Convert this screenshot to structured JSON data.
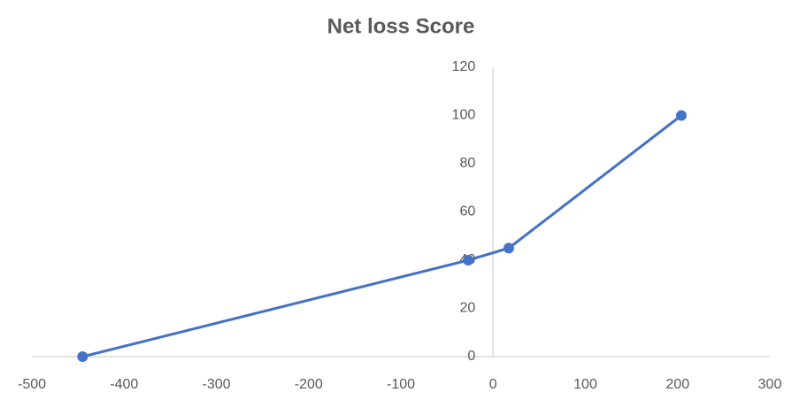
{
  "chart_data": {
    "type": "scatter",
    "lines": true,
    "title": "Net loss Score",
    "x": [
      -445,
      -27,
      17,
      204
    ],
    "values": [
      0,
      40,
      45,
      100
    ],
    "color": "#4472c4",
    "xlim": [
      -500,
      300
    ],
    "xticks": [
      -500,
      -400,
      -300,
      -200,
      -100,
      0,
      100,
      200,
      300
    ],
    "ylim": [
      0,
      120
    ],
    "yticks": [
      0,
      20,
      40,
      60,
      80,
      100,
      120
    ]
  }
}
